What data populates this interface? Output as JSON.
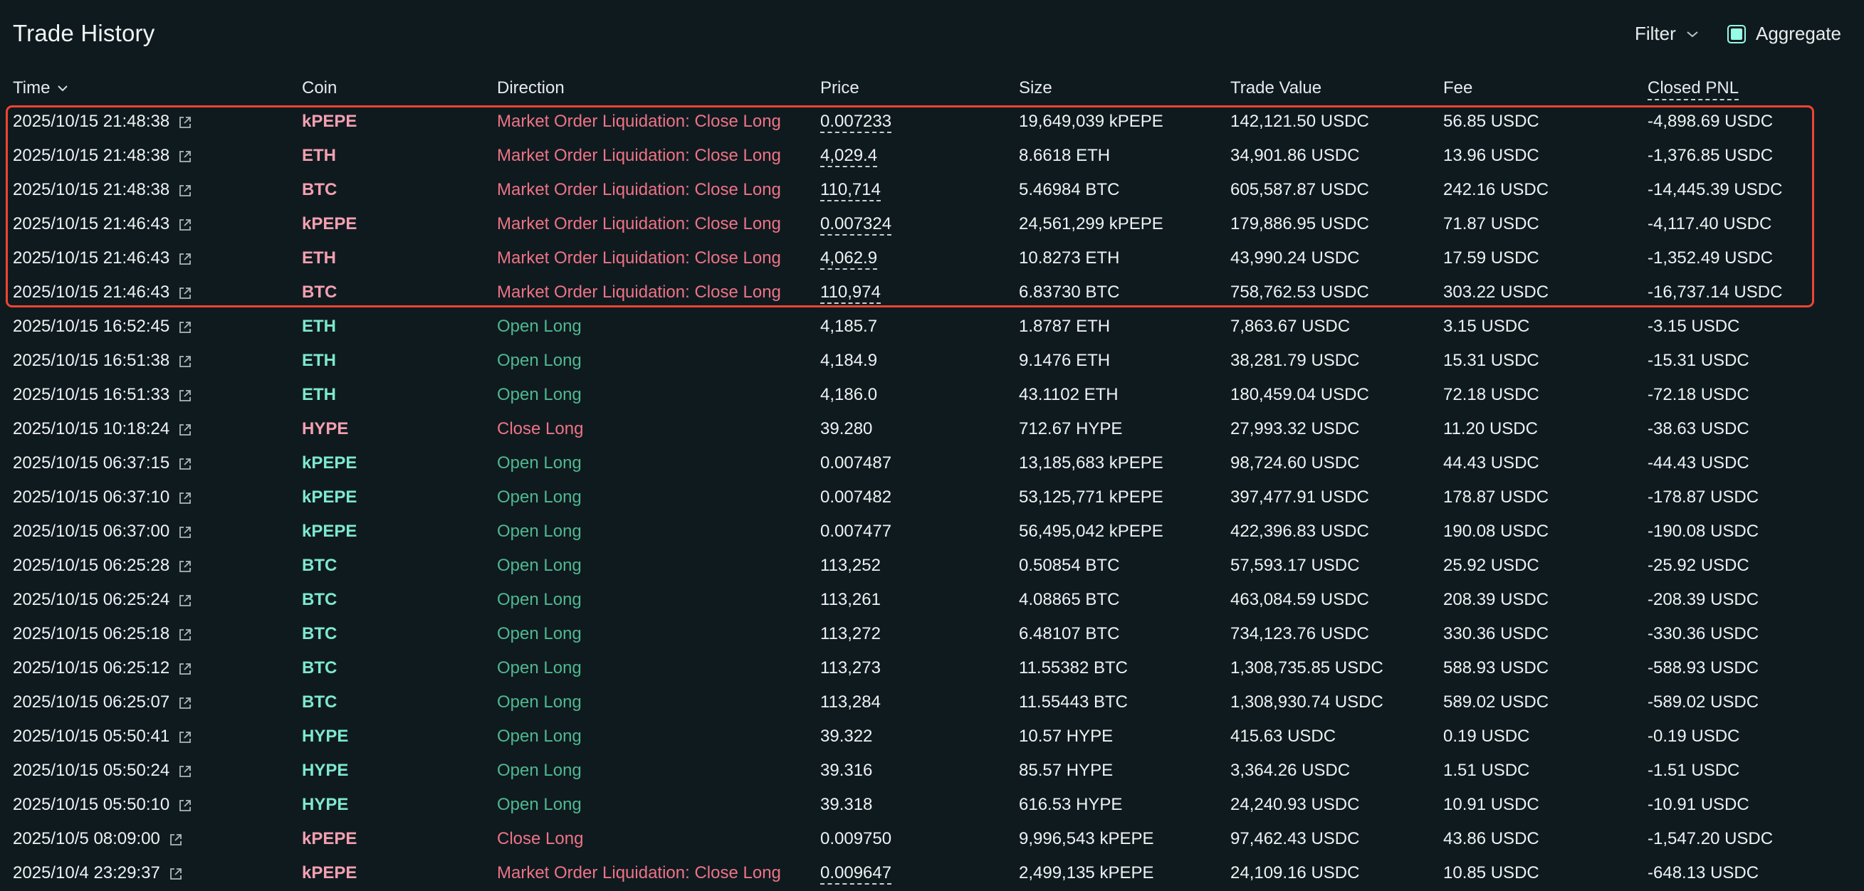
{
  "header": {
    "title": "Trade History",
    "filter_label": "Filter",
    "aggregate_label": "Aggregate",
    "aggregate_checked": true
  },
  "columns": {
    "time": "Time",
    "coin": "Coin",
    "direction": "Direction",
    "price": "Price",
    "size": "Size",
    "trade_value": "Trade Value",
    "fee": "Fee",
    "closed_pnl": "Closed PNL"
  },
  "colors": {
    "background": "#0f1a1f",
    "long_text": "#4fb88f",
    "short_text": "#ee7385",
    "coin_long": "#7de8cf",
    "coin_short": "#f3a0b0",
    "accent": "#97fce4",
    "highlight_box": "#ee4533"
  },
  "trades": [
    {
      "time": "2025/10/15 21:48:38",
      "coin": "kPEPE",
      "direction": "Market Order Liquidation: Close Long",
      "price": "0.007233",
      "size": "19,649,039 kPEPE",
      "trade_value": "142,121.50 USDC",
      "fee": "56.85 USDC",
      "closed_pnl": "-4,898.69 USDC"
    },
    {
      "time": "2025/10/15 21:48:38",
      "coin": "ETH",
      "direction": "Market Order Liquidation: Close Long",
      "price": "4,029.4",
      "size": "8.6618 ETH",
      "trade_value": "34,901.86 USDC",
      "fee": "13.96 USDC",
      "closed_pnl": "-1,376.85 USDC"
    },
    {
      "time": "2025/10/15 21:48:38",
      "coin": "BTC",
      "direction": "Market Order Liquidation: Close Long",
      "price": "110,714",
      "size": "5.46984 BTC",
      "trade_value": "605,587.87 USDC",
      "fee": "242.16 USDC",
      "closed_pnl": "-14,445.39 USDC"
    },
    {
      "time": "2025/10/15 21:46:43",
      "coin": "kPEPE",
      "direction": "Market Order Liquidation: Close Long",
      "price": "0.007324",
      "size": "24,561,299 kPEPE",
      "trade_value": "179,886.95 USDC",
      "fee": "71.87 USDC",
      "closed_pnl": "-4,117.40 USDC"
    },
    {
      "time": "2025/10/15 21:46:43",
      "coin": "ETH",
      "direction": "Market Order Liquidation: Close Long",
      "price": "4,062.9",
      "size": "10.8273 ETH",
      "trade_value": "43,990.24 USDC",
      "fee": "17.59 USDC",
      "closed_pnl": "-1,352.49 USDC"
    },
    {
      "time": "2025/10/15 21:46:43",
      "coin": "BTC",
      "direction": "Market Order Liquidation: Close Long",
      "price": "110,974",
      "size": "6.83730 BTC",
      "trade_value": "758,762.53 USDC",
      "fee": "303.22 USDC",
      "closed_pnl": "-16,737.14 USDC"
    },
    {
      "time": "2025/10/15 16:52:45",
      "coin": "ETH",
      "direction": "Open Long",
      "price": "4,185.7",
      "size": "1.8787 ETH",
      "trade_value": "7,863.67 USDC",
      "fee": "3.15 USDC",
      "closed_pnl": "-3.15 USDC"
    },
    {
      "time": "2025/10/15 16:51:38",
      "coin": "ETH",
      "direction": "Open Long",
      "price": "4,184.9",
      "size": "9.1476 ETH",
      "trade_value": "38,281.79 USDC",
      "fee": "15.31 USDC",
      "closed_pnl": "-15.31 USDC"
    },
    {
      "time": "2025/10/15 16:51:33",
      "coin": "ETH",
      "direction": "Open Long",
      "price": "4,186.0",
      "size": "43.1102 ETH",
      "trade_value": "180,459.04 USDC",
      "fee": "72.18 USDC",
      "closed_pnl": "-72.18 USDC"
    },
    {
      "time": "2025/10/15 10:18:24",
      "coin": "HYPE",
      "direction": "Close Long",
      "price": "39.280",
      "size": "712.67 HYPE",
      "trade_value": "27,993.32 USDC",
      "fee": "11.20 USDC",
      "closed_pnl": "-38.63 USDC"
    },
    {
      "time": "2025/10/15 06:37:15",
      "coin": "kPEPE",
      "direction": "Open Long",
      "price": "0.007487",
      "size": "13,185,683 kPEPE",
      "trade_value": "98,724.60 USDC",
      "fee": "44.43 USDC",
      "closed_pnl": "-44.43 USDC"
    },
    {
      "time": "2025/10/15 06:37:10",
      "coin": "kPEPE",
      "direction": "Open Long",
      "price": "0.007482",
      "size": "53,125,771 kPEPE",
      "trade_value": "397,477.91 USDC",
      "fee": "178.87 USDC",
      "closed_pnl": "-178.87 USDC"
    },
    {
      "time": "2025/10/15 06:37:00",
      "coin": "kPEPE",
      "direction": "Open Long",
      "price": "0.007477",
      "size": "56,495,042 kPEPE",
      "trade_value": "422,396.83 USDC",
      "fee": "190.08 USDC",
      "closed_pnl": "-190.08 USDC"
    },
    {
      "time": "2025/10/15 06:25:28",
      "coin": "BTC",
      "direction": "Open Long",
      "price": "113,252",
      "size": "0.50854 BTC",
      "trade_value": "57,593.17 USDC",
      "fee": "25.92 USDC",
      "closed_pnl": "-25.92 USDC"
    },
    {
      "time": "2025/10/15 06:25:24",
      "coin": "BTC",
      "direction": "Open Long",
      "price": "113,261",
      "size": "4.08865 BTC",
      "trade_value": "463,084.59 USDC",
      "fee": "208.39 USDC",
      "closed_pnl": "-208.39 USDC"
    },
    {
      "time": "2025/10/15 06:25:18",
      "coin": "BTC",
      "direction": "Open Long",
      "price": "113,272",
      "size": "6.48107 BTC",
      "trade_value": "734,123.76 USDC",
      "fee": "330.36 USDC",
      "closed_pnl": "-330.36 USDC"
    },
    {
      "time": "2025/10/15 06:25:12",
      "coin": "BTC",
      "direction": "Open Long",
      "price": "113,273",
      "size": "11.55382 BTC",
      "trade_value": "1,308,735.85 USDC",
      "fee": "588.93 USDC",
      "closed_pnl": "-588.93 USDC"
    },
    {
      "time": "2025/10/15 06:25:07",
      "coin": "BTC",
      "direction": "Open Long",
      "price": "113,284",
      "size": "11.55443 BTC",
      "trade_value": "1,308,930.74 USDC",
      "fee": "589.02 USDC",
      "closed_pnl": "-589.02 USDC"
    },
    {
      "time": "2025/10/15 05:50:41",
      "coin": "HYPE",
      "direction": "Open Long",
      "price": "39.322",
      "size": "10.57 HYPE",
      "trade_value": "415.63 USDC",
      "fee": "0.19 USDC",
      "closed_pnl": "-0.19 USDC"
    },
    {
      "time": "2025/10/15 05:50:24",
      "coin": "HYPE",
      "direction": "Open Long",
      "price": "39.316",
      "size": "85.57 HYPE",
      "trade_value": "3,364.26 USDC",
      "fee": "1.51 USDC",
      "closed_pnl": "-1.51 USDC"
    },
    {
      "time": "2025/10/15 05:50:10",
      "coin": "HYPE",
      "direction": "Open Long",
      "price": "39.318",
      "size": "616.53 HYPE",
      "trade_value": "24,240.93 USDC",
      "fee": "10.91 USDC",
      "closed_pnl": "-10.91 USDC"
    },
    {
      "time": "2025/10/5 08:09:00",
      "coin": "kPEPE",
      "direction": "Close Long",
      "price": "0.009750",
      "size": "9,996,543 kPEPE",
      "trade_value": "97,462.43 USDC",
      "fee": "43.86 USDC",
      "closed_pnl": "-1,547.20 USDC"
    },
    {
      "time": "2025/10/4 23:29:37",
      "coin": "kPEPE",
      "direction": "Market Order Liquidation: Close Long",
      "price": "0.009647",
      "size": "2,499,135 kPEPE",
      "trade_value": "24,109.16 USDC",
      "fee": "10.85 USDC",
      "closed_pnl": "-648.13 USDC"
    }
  ]
}
